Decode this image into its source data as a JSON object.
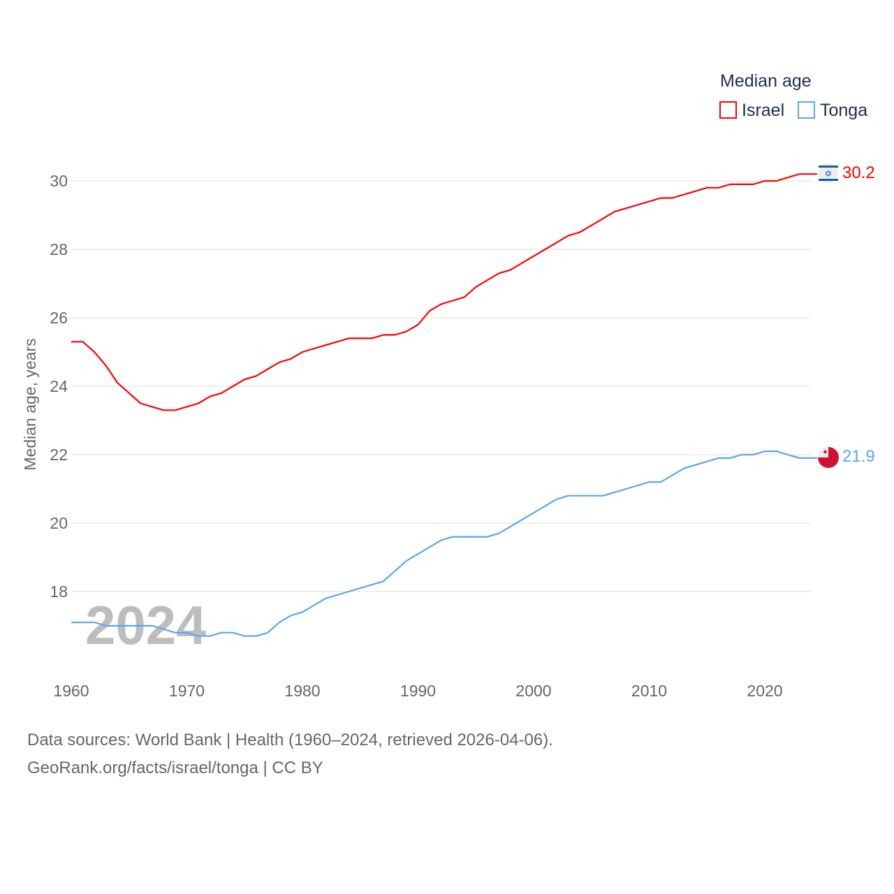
{
  "chart_data": {
    "type": "line",
    "title": "",
    "xlabel": "",
    "ylabel": "Median age, years",
    "legend_title": "Median age",
    "legend_position": "top-right",
    "year_watermark": "2024",
    "xlim": [
      1960,
      2024
    ],
    "ylim": [
      16,
      31
    ],
    "x_ticks": [
      "1960",
      "1970",
      "1980",
      "1990",
      "2000",
      "2010",
      "2020"
    ],
    "y_ticks": [
      "18",
      "20",
      "22",
      "24",
      "26",
      "28",
      "30"
    ],
    "grid": true,
    "x": [
      1960,
      1961,
      1962,
      1963,
      1964,
      1965,
      1966,
      1967,
      1968,
      1969,
      1970,
      1971,
      1972,
      1973,
      1974,
      1975,
      1976,
      1977,
      1978,
      1979,
      1980,
      1981,
      1982,
      1983,
      1984,
      1985,
      1986,
      1987,
      1988,
      1989,
      1990,
      1991,
      1992,
      1993,
      1994,
      1995,
      1996,
      1997,
      1998,
      1999,
      2000,
      2001,
      2002,
      2003,
      2004,
      2005,
      2006,
      2007,
      2008,
      2009,
      2010,
      2011,
      2012,
      2013,
      2014,
      2015,
      2016,
      2017,
      2018,
      2019,
      2020,
      2021,
      2022,
      2023,
      2024
    ],
    "series": [
      {
        "name": "Israel",
        "color": "#ff0000",
        "end_label": "30.2",
        "flag": "israel-flag",
        "values": [
          25.3,
          25.3,
          25.0,
          24.6,
          24.1,
          23.8,
          23.5,
          23.4,
          23.3,
          23.3,
          23.4,
          23.5,
          23.7,
          23.8,
          24.0,
          24.2,
          24.3,
          24.5,
          24.7,
          24.8,
          25.0,
          25.1,
          25.2,
          25.3,
          25.4,
          25.4,
          25.4,
          25.5,
          25.5,
          25.6,
          25.8,
          26.2,
          26.4,
          26.5,
          26.6,
          26.9,
          27.1,
          27.3,
          27.4,
          27.6,
          27.8,
          28.0,
          28.2,
          28.4,
          28.5,
          28.7,
          28.9,
          29.1,
          29.2,
          29.3,
          29.4,
          29.5,
          29.5,
          29.6,
          29.7,
          29.8,
          29.8,
          29.9,
          29.9,
          29.9,
          30.0,
          30.0,
          30.1,
          30.2,
          30.2
        ]
      },
      {
        "name": "Tonga",
        "color": "#5aa5ef",
        "end_label": "21.9",
        "flag": "tonga-flag",
        "values": [
          17.1,
          17.1,
          17.1,
          17.0,
          17.0,
          17.0,
          17.0,
          17.0,
          16.9,
          16.8,
          16.8,
          16.7,
          16.7,
          16.8,
          16.8,
          16.7,
          16.7,
          16.8,
          17.1,
          17.3,
          17.4,
          17.6,
          17.8,
          17.9,
          18.0,
          18.1,
          18.2,
          18.3,
          18.6,
          18.9,
          19.1,
          19.3,
          19.5,
          19.6,
          19.6,
          19.6,
          19.6,
          19.7,
          19.9,
          20.1,
          20.3,
          20.5,
          20.7,
          20.8,
          20.8,
          20.8,
          20.8,
          20.9,
          21.0,
          21.1,
          21.2,
          21.2,
          21.4,
          21.6,
          21.7,
          21.8,
          21.9,
          21.9,
          22.0,
          22.0,
          22.1,
          22.1,
          22.0,
          21.9,
          21.9
        ]
      }
    ]
  },
  "footer": {
    "line1": "Data sources: World Bank | Health (1960–2024, retrieved 2026-04-06).",
    "line2": "GeoRank.org/facts/israel/tonga | CC BY"
  }
}
